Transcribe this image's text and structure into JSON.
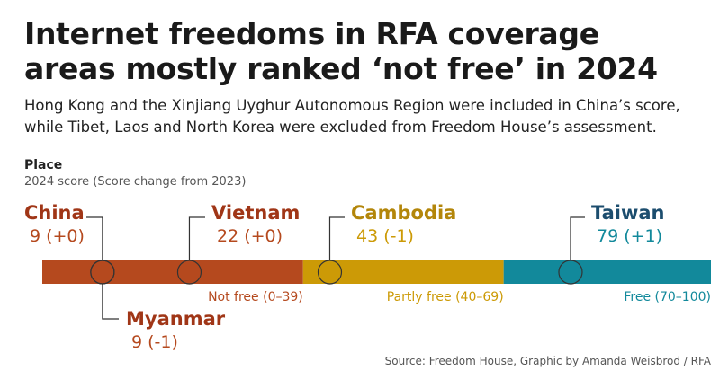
{
  "chart_data": {
    "type": "scale",
    "title": "Internet freedoms in RFA coverage areas mostly ranked ‘not free’ in 2024",
    "subtitle": "Hong Kong and the Xinjiang Uyghur Autonomous Region were included in China’s score, while Tibet, Laos and North Korea were excluded from Freedom House’s assessment.",
    "legend_title": "Place",
    "legend_subtitle": "2024 score (Score change from 2023)",
    "xlim": [
      0,
      100
    ],
    "bands": [
      {
        "label": "Not free (0–39)",
        "range": [
          0,
          39
        ],
        "color": "#b5491e",
        "name_color": "#a03617"
      },
      {
        "label": "Partly free (40–69)",
        "range": [
          40,
          69
        ],
        "color": "#cc9a06",
        "name_color": "#b3860a"
      },
      {
        "label": "Free (70–100)",
        "range": [
          70,
          100
        ],
        "color": "#12899b",
        "name_color": "#1c4d6e"
      }
    ],
    "places": [
      {
        "name": "China",
        "score": 9,
        "change": 0,
        "change_label": "(+0)"
      },
      {
        "name": "Myanmar",
        "score": 9,
        "change": -1,
        "change_label": "(-1)"
      },
      {
        "name": "Vietnam",
        "score": 22,
        "change": 0,
        "change_label": "(+0)"
      },
      {
        "name": "Cambodia",
        "score": 43,
        "change": -1,
        "change_label": "(-1)"
      },
      {
        "name": "Taiwan",
        "score": 79,
        "change": 1,
        "change_label": "(+1)"
      }
    ],
    "source": "Source: Freedom House, Graphic by Amanda Weisbrod / RFA"
  }
}
